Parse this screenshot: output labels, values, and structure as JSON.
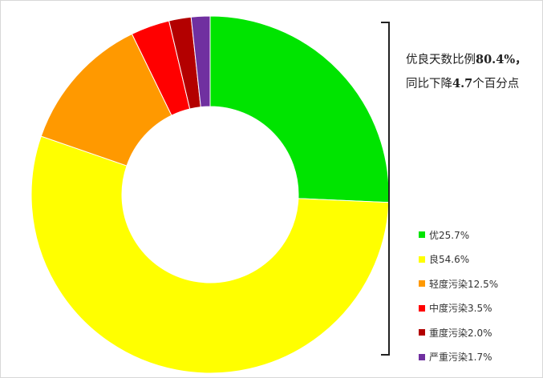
{
  "chart_data": {
    "type": "pie",
    "variant": "donut",
    "start_angle": "top",
    "direction": "clockwise",
    "categories": [
      "优",
      "良",
      "轻度污染",
      "中度污染",
      "重度污染",
      "严重污染"
    ],
    "values": [
      25.7,
      54.6,
      12.5,
      3.5,
      2.0,
      1.7
    ],
    "colors": [
      "#00e400",
      "#ffff00",
      "#ff9900",
      "#ff0000",
      "#b30000",
      "#7030a0"
    ],
    "legend_labels": [
      "优25.7%",
      "良54.6%",
      "轻度污染12.5%",
      "中度污染3.5%",
      "重度污染2.0%",
      "严重污染1.7%"
    ],
    "legend_position": "right",
    "annotation": {
      "line1_text": "优良天数比例",
      "line1_value": "80.4%，",
      "line2_text": "同比下降",
      "line2_value": "4.7",
      "line2_suffix": "个百分点"
    }
  }
}
